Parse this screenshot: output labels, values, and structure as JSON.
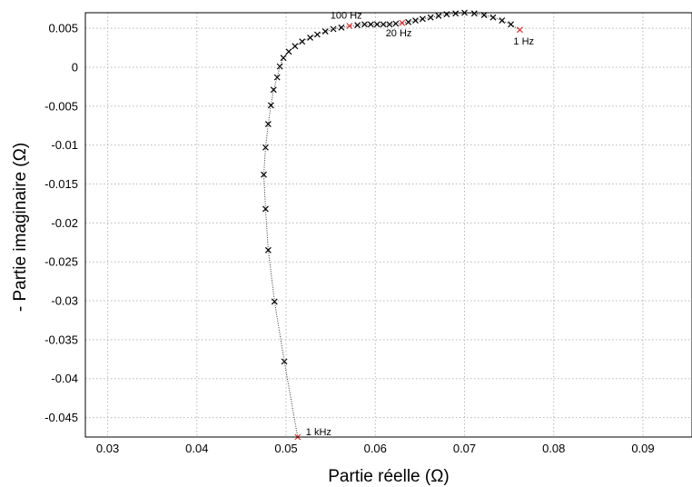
{
  "chart_data": {
    "type": "scatter",
    "xlabel": "Partie réelle (Ω)",
    "ylabel": "- Partie imaginaire (Ω)",
    "xlim": [
      0.0275,
      0.0955
    ],
    "ylim": [
      -0.0475,
      0.007
    ],
    "grid": true,
    "x_ticks": [
      0.03,
      0.04,
      0.05,
      0.06,
      0.07,
      0.08,
      0.09
    ],
    "x_tick_labels": [
      "0.03",
      "0.04",
      "0.05",
      "0.06",
      "0.07",
      "0.08",
      "0.09"
    ],
    "y_ticks": [
      0.005,
      0,
      -0.005,
      -0.01,
      -0.015,
      -0.02,
      -0.025,
      -0.03,
      -0.035,
      -0.04,
      -0.045
    ],
    "y_tick_labels": [
      "0.005",
      "0",
      "-0.005",
      "-0.01",
      "-0.015",
      "-0.02",
      "-0.025",
      "-0.03",
      "-0.035",
      "-0.04",
      "-0.045"
    ],
    "colors": {
      "marker": "#000000",
      "highlight": "#e03030",
      "grid": "#b8b8b8",
      "line": "#333333"
    },
    "series": [
      {
        "marker": "x",
        "points": [
          [
            0.0762,
            0.0048
          ],
          [
            0.0752,
            0.0055
          ],
          [
            0.0742,
            0.006
          ],
          [
            0.0732,
            0.0064
          ],
          [
            0.0722,
            0.0067
          ],
          [
            0.0711,
            0.0069
          ],
          [
            0.07,
            0.007
          ],
          [
            0.069,
            0.0069
          ],
          [
            0.068,
            0.0068
          ],
          [
            0.0671,
            0.0066
          ],
          [
            0.0662,
            0.0064
          ],
          [
            0.0653,
            0.0062
          ],
          [
            0.0645,
            0.006
          ],
          [
            0.0637,
            0.0058
          ],
          [
            0.063,
            0.0057
          ],
          [
            0.0623,
            0.0056
          ],
          [
            0.0616,
            0.0055
          ],
          [
            0.0609,
            0.0055
          ],
          [
            0.0602,
            0.0055
          ],
          [
            0.0595,
            0.0055
          ],
          [
            0.0588,
            0.0055
          ],
          [
            0.058,
            0.0054
          ],
          [
            0.0571,
            0.0053
          ],
          [
            0.0562,
            0.0051
          ],
          [
            0.0553,
            0.0049
          ],
          [
            0.0544,
            0.0046
          ],
          [
            0.0535,
            0.0042
          ],
          [
            0.0527,
            0.0038
          ],
          [
            0.0518,
            0.0033
          ],
          [
            0.051,
            0.0027
          ],
          [
            0.0503,
            0.002
          ],
          [
            0.0497,
            0.0012
          ],
          [
            0.0493,
            0.0001
          ],
          [
            0.049,
            -0.0013
          ],
          [
            0.0486,
            -0.0029
          ],
          [
            0.0483,
            -0.0049
          ],
          [
            0.048,
            -0.0073
          ],
          [
            0.0477,
            -0.0103
          ],
          [
            0.0475,
            -0.0138
          ],
          [
            0.0477,
            -0.0182
          ],
          [
            0.048,
            -0.0235
          ],
          [
            0.0487,
            -0.0301
          ],
          [
            0.0498,
            -0.0378
          ],
          [
            0.0513,
            -0.0475
          ]
        ]
      }
    ],
    "highlighted_points": [
      {
        "x": 0.0762,
        "y": 0.0048
      },
      {
        "x": 0.063,
        "y": 0.0057
      },
      {
        "x": 0.0571,
        "y": 0.0053
      },
      {
        "x": 0.0513,
        "y": -0.0475
      }
    ],
    "annotations": [
      {
        "text": "1 Hz",
        "x": 0.0762,
        "y": 0.0048
      },
      {
        "text": "20 Hz",
        "x": 0.063,
        "y": 0.0057
      },
      {
        "text": "100 Hz",
        "x": 0.0571,
        "y": 0.0053
      },
      {
        "text": "1 kHz",
        "x": 0.0513,
        "y": -0.0475
      }
    ]
  }
}
